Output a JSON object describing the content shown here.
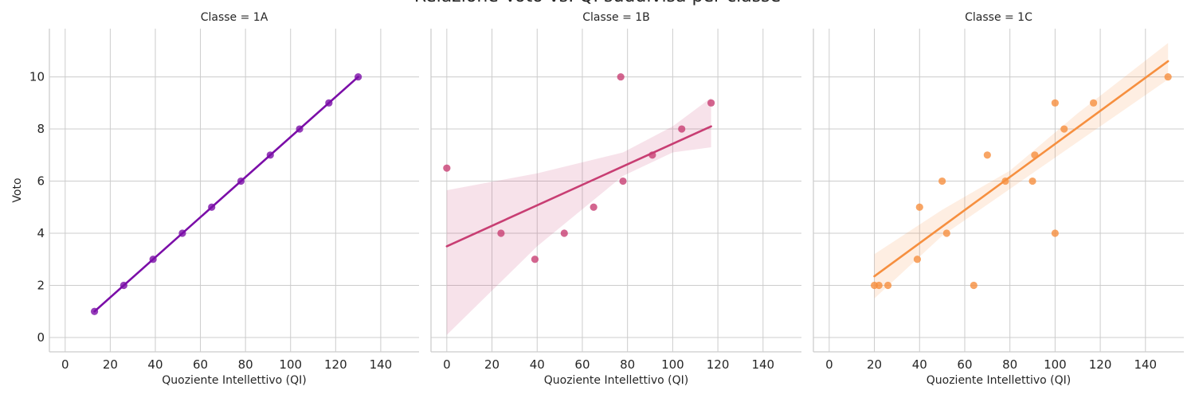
{
  "figure": {
    "suptitle": "Relazione Voto vs. QI suddivisa per classe"
  },
  "chart_data": [
    {
      "type": "scatter",
      "title": "Classe = 1A",
      "xlabel": "Quoziente Intellettivo (QI)",
      "ylabel": "Voto",
      "xlim": [
        -7,
        157
      ],
      "ylim": [
        -0.55,
        11.85
      ],
      "xticks": [
        0,
        20,
        40,
        60,
        80,
        100,
        120,
        140
      ],
      "yticks": [
        0,
        2,
        4,
        6,
        8,
        10
      ],
      "grid": true,
      "color": "#7b0ea8",
      "points": [
        [
          13,
          1
        ],
        [
          26,
          2
        ],
        [
          39,
          3
        ],
        [
          52,
          4
        ],
        [
          65,
          5
        ],
        [
          78,
          6
        ],
        [
          91,
          7
        ],
        [
          104,
          8
        ],
        [
          117,
          9
        ],
        [
          130,
          10
        ]
      ],
      "regression": {
        "x": [
          13,
          130
        ],
        "y": [
          1,
          10
        ]
      },
      "ci_band": {
        "x": [
          13,
          130
        ],
        "lower": [
          1,
          10
        ],
        "upper": [
          1,
          10
        ]
      }
    },
    {
      "type": "scatter",
      "title": "Classe = 1B",
      "xlabel": "Quoziente Intellettivo (QI)",
      "ylabel": "",
      "xlim": [
        -7,
        157
      ],
      "ylim": [
        -0.55,
        11.85
      ],
      "xticks": [
        0,
        20,
        40,
        60,
        80,
        100,
        120,
        140
      ],
      "yticks": [
        0,
        2,
        4,
        6,
        8,
        10
      ],
      "grid": true,
      "color": "#c83e73",
      "points": [
        [
          0,
          6.5
        ],
        [
          24,
          4
        ],
        [
          39,
          3
        ],
        [
          52,
          4
        ],
        [
          65,
          5
        ],
        [
          77,
          10
        ],
        [
          78,
          6
        ],
        [
          91,
          7
        ],
        [
          104,
          8
        ],
        [
          117,
          9
        ]
      ],
      "regression": {
        "x": [
          0,
          117
        ],
        "y": [
          3.5,
          8.1
        ]
      },
      "ci_band": {
        "x": [
          0,
          40,
          78,
          100,
          117
        ],
        "lower": [
          0.1,
          3.5,
          6.2,
          7.1,
          7.3
        ],
        "upper": [
          5.65,
          6.3,
          7.1,
          8.1,
          9.2
        ]
      }
    },
    {
      "type": "scatter",
      "title": "Classe = 1C",
      "xlabel": "Quoziente Intellettivo (QI)",
      "ylabel": "",
      "xlim": [
        -7,
        157
      ],
      "ylim": [
        -0.55,
        11.85
      ],
      "xticks": [
        0,
        20,
        40,
        60,
        80,
        100,
        120,
        140
      ],
      "yticks": [
        0,
        2,
        4,
        6,
        8,
        10
      ],
      "grid": true,
      "color": "#f68f3f",
      "points": [
        [
          20,
          2
        ],
        [
          22,
          2
        ],
        [
          26,
          2
        ],
        [
          39,
          3
        ],
        [
          40,
          5
        ],
        [
          50,
          6
        ],
        [
          52,
          4
        ],
        [
          64,
          2
        ],
        [
          70,
          7
        ],
        [
          78,
          6
        ],
        [
          90,
          6
        ],
        [
          91,
          7
        ],
        [
          100,
          9
        ],
        [
          100,
          4
        ],
        [
          104,
          8
        ],
        [
          117,
          9
        ],
        [
          150,
          10
        ]
      ],
      "regression": {
        "x": [
          20,
          150
        ],
        "y": [
          2.35,
          10.6
        ]
      },
      "ci_band": {
        "x": [
          20,
          50,
          80,
          110,
          150
        ],
        "lower": [
          1.5,
          3.9,
          5.7,
          7.5,
          9.9
        ],
        "upper": [
          3.2,
          4.9,
          6.4,
          8.6,
          11.3
        ]
      }
    }
  ]
}
